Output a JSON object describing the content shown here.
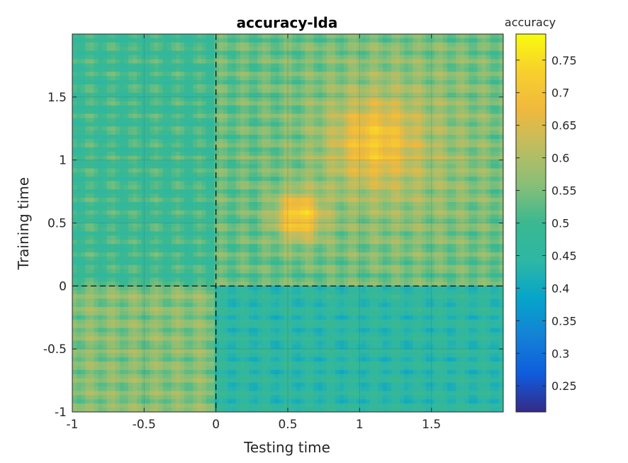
{
  "chart_data": {
    "type": "heatmap",
    "title": "accuracy-lda",
    "xlabel": "Testing time",
    "ylabel": "Training time",
    "xlim": [
      -1,
      2
    ],
    "ylim": [
      -1,
      2
    ],
    "x_ticks": [
      -1,
      -0.5,
      0,
      0.5,
      1,
      1.5
    ],
    "y_ticks": [
      -1,
      -0.5,
      0,
      0.5,
      1,
      1.5
    ],
    "x_tick_labels": [
      "-1",
      "-0.5",
      "0",
      "0.5",
      "1",
      "1.5"
    ],
    "y_tick_labels": [
      "-1",
      "-0.5",
      "0",
      "0.5",
      "1",
      "1.5"
    ],
    "grid": true,
    "reference_lines": {
      "x": 0,
      "y": 0,
      "style": "dashed"
    },
    "colorbar": {
      "label": "accuracy",
      "colormap": "parula",
      "clim": [
        0.21,
        0.79
      ],
      "ticks": [
        0.25,
        0.3,
        0.35,
        0.4,
        0.45,
        0.5,
        0.55,
        0.6,
        0.65,
        0.7,
        0.75
      ],
      "tick_labels": [
        "0.25",
        "0.3",
        "0.35",
        "0.4",
        "0.45",
        "0.5",
        "0.55",
        "0.6",
        "0.65",
        "0.7",
        "0.75"
      ]
    },
    "regions": [
      {
        "testing_time": [
          0.4,
          0.75
        ],
        "training_time": [
          0.35,
          0.75
        ],
        "accuracy": 0.72
      },
      {
        "testing_time": [
          0.8,
          1.4
        ],
        "training_time": [
          0.8,
          1.5
        ],
        "accuracy": 0.66
      },
      {
        "testing_time": [
          0.5,
          2.0
        ],
        "training_time": [
          0.2,
          2.0
        ],
        "accuracy": 0.6
      },
      {
        "testing_time": [
          -1.0,
          0.0
        ],
        "training_time": [
          0.0,
          2.0
        ],
        "accuracy": 0.5
      },
      {
        "testing_time": [
          0.0,
          2.0
        ],
        "training_time": [
          -1.0,
          0.0
        ],
        "accuracy": 0.45
      },
      {
        "testing_time": [
          -1.0,
          0.0
        ],
        "training_time": [
          -1.0,
          0.0
        ],
        "accuracy": 0.56
      }
    ]
  }
}
